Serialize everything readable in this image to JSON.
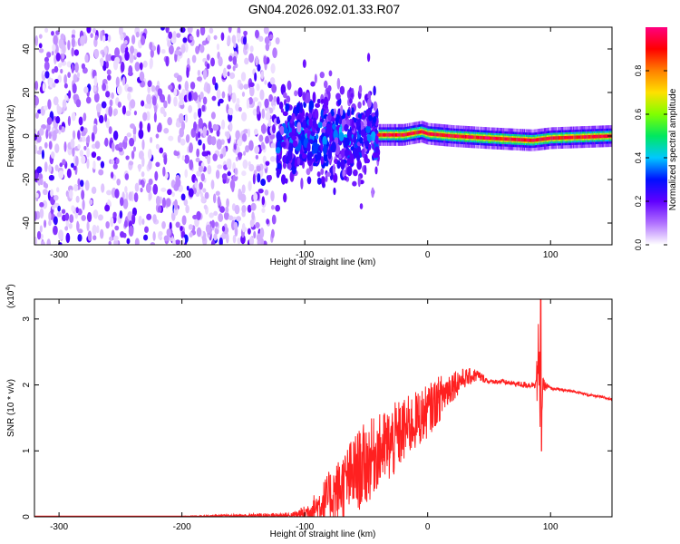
{
  "title": "GN04.2026.092.01.33.R07",
  "chart_data": [
    {
      "type": "heatmap",
      "name": "spectrogram",
      "xlabel": "Height of straight line (km)",
      "ylabel": "Frequency (Hz)",
      "xlim": [
        -320,
        150
      ],
      "ylim": [
        -50,
        50
      ],
      "x_ticks": [
        -300,
        -200,
        -100,
        0,
        100
      ],
      "x_tick_labels": [
        "-300",
        "-200",
        "-100",
        "0",
        "100"
      ],
      "y_ticks": [
        -40,
        -20,
        0,
        20,
        40
      ],
      "y_tick_labels": [
        "-40",
        "-20",
        "0",
        "20",
        "40"
      ],
      "colorbar": {
        "label": "Normalized spectral amplitude",
        "range": [
          0,
          1
        ],
        "ticks": [
          0.0,
          0.2,
          0.4,
          0.6,
          0.8
        ],
        "tick_labels": [
          "0.0",
          "0.2",
          "0.4",
          "0.6",
          "0.8"
        ],
        "colors": [
          "#ffffff",
          "#b070ff",
          "#6000ff",
          "#0010ff",
          "#00c8ff",
          "#00e860",
          "#80ff00",
          "#ffe000",
          "#ff8000",
          "#ff0000",
          "#ff0080"
        ]
      },
      "regions": [
        {
          "x_range": [
            -320,
            -122
          ],
          "freq_range": [
            -50,
            50
          ],
          "amplitude": "noise 0.0-0.1"
        },
        {
          "x_range": [
            -122,
            -40
          ],
          "freq_range": [
            -25,
            30
          ],
          "amplitude": "0.1-0.3"
        },
        {
          "x_range": [
            -40,
            150
          ],
          "freq_range": [
            -5,
            5
          ],
          "amplitude": "0.5-1.0"
        }
      ],
      "line_center": [
        {
          "x": -40,
          "freq": 0.5
        },
        {
          "x": -20,
          "freq": 0.5
        },
        {
          "x": -5,
          "freq": 2
        },
        {
          "x": 0,
          "freq": 1
        },
        {
          "x": 20,
          "freq": 0
        },
        {
          "x": 50,
          "freq": -1
        },
        {
          "x": 85,
          "freq": -2
        },
        {
          "x": 100,
          "freq": -1
        },
        {
          "x": 150,
          "freq": 0
        }
      ]
    },
    {
      "type": "line",
      "name": "snr",
      "xlabel": "Height of straight line (km)",
      "ylabel": "SNR (10 * v/v)",
      "scale_label": "(x10",
      "scale_exponent": "4",
      "xlim": [
        -320,
        150
      ],
      "ylim": [
        0,
        3.3
      ],
      "x_ticks": [
        -300,
        -200,
        -100,
        0,
        100
      ],
      "x_tick_labels": [
        "-300",
        "-200",
        "-100",
        "0",
        "100"
      ],
      "y_ticks": [
        0,
        1,
        2,
        3
      ],
      "y_tick_labels": [
        "0",
        "1",
        "2",
        "3"
      ],
      "color": "#ff2020",
      "series": [
        {
          "x": [
            -320,
            -200,
            -110,
            -100,
            -90,
            -80,
            -70,
            -60,
            -50,
            -40,
            -30,
            -20,
            -10,
            0,
            10,
            20,
            30,
            40,
            50,
            60,
            70,
            80,
            85,
            88,
            90,
            92,
            94,
            100,
            110,
            120,
            130,
            140,
            150
          ],
          "y": [
            0.01,
            0.01,
            0.02,
            0.05,
            0.15,
            0.3,
            0.45,
            0.65,
            0.8,
            1.0,
            1.1,
            1.3,
            1.45,
            1.6,
            1.8,
            2.0,
            2.1,
            2.15,
            2.05,
            2.05,
            2.02,
            2.0,
            2.0,
            2.05,
            2.2,
            1.5,
            2.0,
            1.95,
            1.92,
            1.9,
            1.85,
            1.82,
            1.78
          ],
          "noise": [
            0,
            0,
            0.05,
            0.12,
            0.25,
            0.4,
            0.5,
            0.6,
            0.65,
            0.55,
            0.6,
            0.5,
            0.45,
            0.4,
            0.35,
            0.25,
            0.15,
            0.1,
            0.03,
            0.04,
            0.04,
            0.05,
            0.05,
            0.1,
            0.8,
            0.6,
            0.1,
            0.02,
            0.02,
            0.02,
            0.02,
            0.02,
            0.02
          ]
        }
      ]
    }
  ]
}
